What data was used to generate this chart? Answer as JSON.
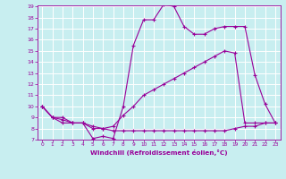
{
  "xlabel": "Windchill (Refroidissement éolien,°C)",
  "bg_color": "#c8eef0",
  "grid_color": "#ffffff",
  "line_color": "#990099",
  "xmin": 0,
  "xmax": 23,
  "ymin": 7,
  "ymax": 19,
  "line1_x": [
    0,
    1,
    2,
    3,
    4,
    5,
    6,
    7,
    8,
    9,
    10,
    11,
    12,
    13,
    14,
    15,
    16,
    17,
    18,
    19,
    20,
    21,
    22,
    23
  ],
  "line1_y": [
    10,
    9,
    8.5,
    8.5,
    8.5,
    7.1,
    7.3,
    7.1,
    10.0,
    15.5,
    17.8,
    17.8,
    19.2,
    19.0,
    17.2,
    16.5,
    16.5,
    17.0,
    17.2,
    17.2,
    17.2,
    12.8,
    10.2,
    8.5
  ],
  "line2_x": [
    0,
    1,
    2,
    3,
    4,
    5,
    6,
    7,
    8,
    9,
    10,
    11,
    12,
    13,
    14,
    15,
    16,
    17,
    18,
    19,
    20,
    21,
    22,
    23
  ],
  "line2_y": [
    10,
    9,
    9,
    8.5,
    8.5,
    8.0,
    8.0,
    8.2,
    9.2,
    10.0,
    11.0,
    11.5,
    12.0,
    12.5,
    13.0,
    13.5,
    14.0,
    14.5,
    15.0,
    14.8,
    8.5,
    8.5,
    8.5,
    8.5
  ],
  "line3_x": [
    0,
    1,
    2,
    3,
    4,
    5,
    6,
    7,
    8,
    9,
    10,
    11,
    12,
    13,
    14,
    15,
    16,
    17,
    18,
    19,
    20,
    21,
    22,
    23
  ],
  "line3_y": [
    10,
    9,
    8.8,
    8.5,
    8.5,
    8.2,
    8.0,
    7.8,
    7.8,
    7.8,
    7.8,
    7.8,
    7.8,
    7.8,
    7.8,
    7.8,
    7.8,
    7.8,
    7.8,
    8.0,
    8.2,
    8.2,
    8.5,
    8.5
  ]
}
